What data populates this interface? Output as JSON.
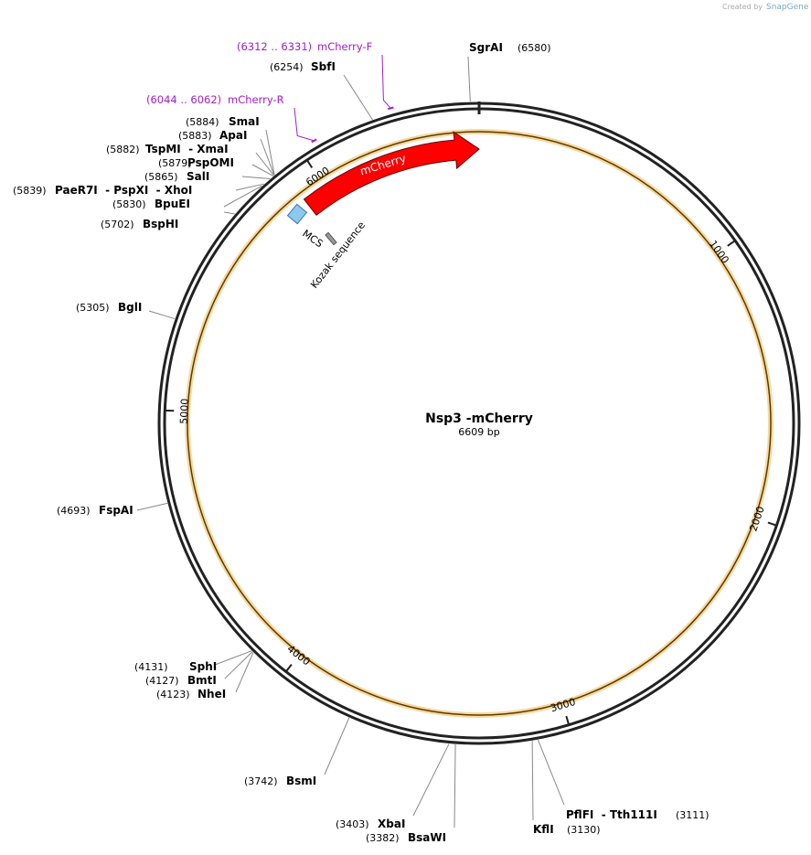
{
  "map": {
    "title": "Nsp3 -mCherry",
    "length": {
      "value": 6609,
      "label": "6609 bp"
    },
    "ruler": [
      1000,
      2000,
      3000,
      4000,
      5000,
      6000
    ],
    "sites": [
      {
        "position": {
          "value": 6580,
          "label": "(6580)"
        },
        "name": "SgrAI"
      },
      {
        "position": {
          "value": 6254,
          "label": "(6254)"
        },
        "name": "SbfI"
      },
      {
        "position": {
          "value": 5884,
          "label": "(5884)"
        },
        "name": "SmaI"
      },
      {
        "position": {
          "value": 5883,
          "label": "(5883)"
        },
        "name": "ApaI"
      },
      {
        "position": {
          "value": 5882,
          "label": "(5882)"
        },
        "name": "TspMI  - XmaI"
      },
      {
        "position": {
          "value": 5879,
          "label": "(5879)"
        },
        "name": "PspOMI"
      },
      {
        "position": {
          "value": 5865,
          "label": "(5865)"
        },
        "name": "SalI"
      },
      {
        "position": {
          "value": 5839,
          "label": "(5839)"
        },
        "name": "PaeR7I  - PspXI  - XhoI"
      },
      {
        "position": {
          "value": 5830,
          "label": "(5830)"
        },
        "name": "BpuEI"
      },
      {
        "position": {
          "value": 5702,
          "label": "(5702)"
        },
        "name": "BspHI"
      },
      {
        "position": {
          "value": 5305,
          "label": "(5305)"
        },
        "name": "BglI"
      },
      {
        "position": {
          "value": 4693,
          "label": "(4693)"
        },
        "name": "FspAI"
      },
      {
        "position": {
          "value": 4131,
          "label": "(4131)"
        },
        "name": "SphI"
      },
      {
        "position": {
          "value": 4127,
          "label": "(4127)"
        },
        "name": "BmtI"
      },
      {
        "position": {
          "value": 4123,
          "label": "(4123)"
        },
        "name": "NheI"
      },
      {
        "position": {
          "value": 3742,
          "label": "(3742)"
        },
        "name": "BsmI"
      },
      {
        "position": {
          "value": 3403,
          "label": "(3403)"
        },
        "name": "XbaI"
      },
      {
        "position": {
          "value": 3382,
          "label": "(3382)"
        },
        "name": "BsaWI"
      },
      {
        "position": {
          "value": 3130,
          "label": "(3130)"
        },
        "name": "KflI"
      },
      {
        "position": {
          "value": 3111,
          "label": "(3111)"
        },
        "name": "PflFI  - Tth111I"
      }
    ],
    "primers": [
      {
        "start": 6312,
        "end": 6331,
        "label": "(6312 .. 6331)",
        "name": "mCherry-F"
      },
      {
        "start": 6044,
        "end": 6062,
        "label": "(6044 .. 6062)",
        "name": "mCherry-R"
      }
    ],
    "features": [
      {
        "name": "mCherry"
      },
      {
        "name": "MCS"
      },
      {
        "name": "Kozak sequence"
      }
    ]
  },
  "credit": {
    "prefix": "Created by",
    "brand": "SnapGene"
  }
}
